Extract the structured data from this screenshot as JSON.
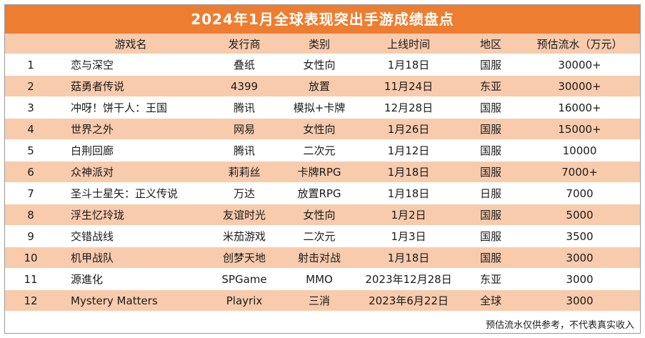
{
  "title": "2024年1月全球表现突出手游成绩盘点",
  "columns": [
    "游戏名",
    "发行商",
    "类别",
    "上线时间",
    "地区",
    "预估流水（万元）"
  ],
  "rows": [
    {
      "idx": "1",
      "name": "恋与深空",
      "publisher": "叠纸",
      "category": "女性向",
      "date": "1月18日",
      "region": "国服",
      "revenue": "30000+"
    },
    {
      "idx": "2",
      "name": "菇勇者传说",
      "publisher": "4399",
      "category": "放置",
      "date": "11月24日",
      "region": "东亚",
      "revenue": "30000+"
    },
    {
      "idx": "3",
      "name": "冲呀！饼干人：王国",
      "publisher": "腾讯",
      "category": "模拟+卡牌",
      "date": "12月28日",
      "region": "国服",
      "revenue": "16000+"
    },
    {
      "idx": "4",
      "name": "世界之外",
      "publisher": "网易",
      "category": "女性向",
      "date": "1月26日",
      "region": "国服",
      "revenue": "15000+"
    },
    {
      "idx": "5",
      "name": "白荆回廊",
      "publisher": "腾讯",
      "category": "二次元",
      "date": "1月12日",
      "region": "国服",
      "revenue": "10000"
    },
    {
      "idx": "6",
      "name": "众神派对",
      "publisher": "莉莉丝",
      "category": "卡牌RPG",
      "date": "1月18日",
      "region": "国服",
      "revenue": "7000+"
    },
    {
      "idx": "7",
      "name": "圣斗士星矢：正义传说",
      "publisher": "万达",
      "category": "放置RPG",
      "date": "1月18日",
      "region": "日服",
      "revenue": "7000"
    },
    {
      "idx": "8",
      "name": "浮生忆玲珑",
      "publisher": "友谊时光",
      "category": "女性向",
      "date": "1月2日",
      "region": "国服",
      "revenue": "5000"
    },
    {
      "idx": "9",
      "name": "交错战线",
      "publisher": "米茄游戏",
      "category": "二次元",
      "date": "1月3日",
      "region": "国服",
      "revenue": "3500"
    },
    {
      "idx": "10",
      "name": "机甲战队",
      "publisher": "创梦天地",
      "category": "射击对战",
      "date": "1月18日",
      "region": "国服",
      "revenue": "3000"
    },
    {
      "idx": "11",
      "name": "源進化",
      "publisher": "SPGame",
      "category": "MMO",
      "date": "2023年12月28日",
      "region": "东亚",
      "revenue": "3000"
    },
    {
      "idx": "12",
      "name": "Mystery Matters",
      "publisher": "Playrix",
      "category": "三消",
      "date": "2023年6月22日",
      "region": "全球",
      "revenue": "3000"
    }
  ],
  "note": "预估流水仅供参考，不代表真实收入",
  "colors": {
    "header": "#ed7d31",
    "stripe": "#f8cbad"
  }
}
